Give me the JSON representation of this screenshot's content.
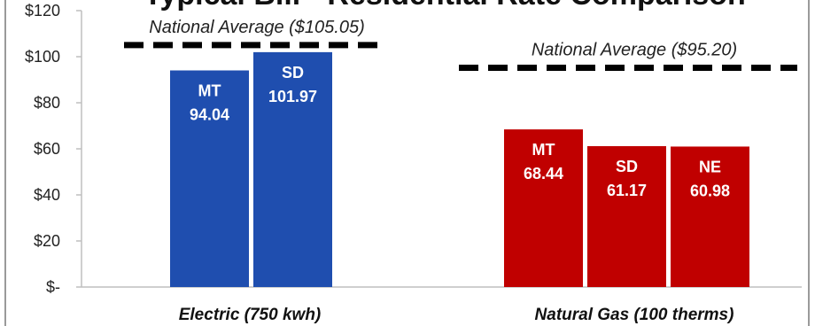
{
  "chart_data": {
    "type": "bar",
    "title": "Typical Bill - Residential Rate Comparison",
    "categories": [
      "Electric (750 kwh)",
      "Natural Gas (100 therms)"
    ],
    "y_ticks": [
      "$-",
      "$20",
      "$40",
      "$60",
      "$80",
      "$100",
      "$120"
    ],
    "ylim": [
      0,
      120
    ],
    "grid": false,
    "bars": [
      {
        "category": "Electric (750 kwh)",
        "state": "MT",
        "value": 94.04,
        "value_label": "94.04",
        "color": "#1f4eaf"
      },
      {
        "category": "Electric (750 kwh)",
        "state": "SD",
        "value": 101.97,
        "value_label": "101.97",
        "color": "#1f4eaf"
      },
      {
        "category": "Natural Gas (100 therms)",
        "state": "MT",
        "value": 68.44,
        "value_label": "68.44",
        "color": "#c00000"
      },
      {
        "category": "Natural Gas (100 therms)",
        "state": "SD",
        "value": 61.17,
        "value_label": "61.17",
        "color": "#c00000"
      },
      {
        "category": "Natural Gas (100 therms)",
        "state": "NE",
        "value": 60.98,
        "value_label": "60.98",
        "color": "#c00000"
      }
    ],
    "averages": [
      {
        "category": "Electric (750 kwh)",
        "value": 105.05,
        "label": "National Average ($105.05)"
      },
      {
        "category": "Natural Gas (100 therms)",
        "value": 95.2,
        "label": "National Average ($95.20)"
      }
    ]
  }
}
